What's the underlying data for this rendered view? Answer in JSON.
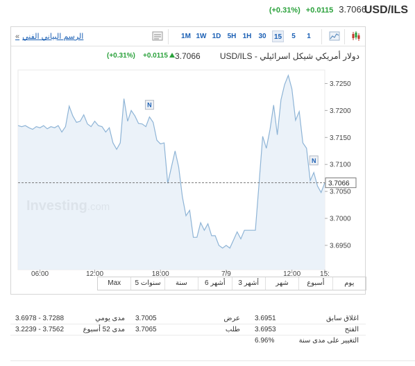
{
  "header": {
    "symbol": "USD/ILS",
    "price": "3.7066",
    "change": "+0.0115",
    "change_pct": "(+0.31%)"
  },
  "toolbar": {
    "tech_chart_link": "الرسم البياني الفني",
    "tech_chart_arrow": "«",
    "timeframes": [
      "1M",
      "1W",
      "1D",
      "5H",
      "1H",
      "30",
      "15",
      "5",
      "1"
    ],
    "active_timeframe": "15",
    "icons": [
      "candlestick-icon",
      "area-chart-icon",
      "table-icon"
    ]
  },
  "title_row": {
    "name": "USD/ILS - دولار أمريكي شيكل اسرائيلي",
    "price": "3.7066",
    "change": "+0.0115",
    "change_pct": "(+0.31%)"
  },
  "chart_data": {
    "type": "area",
    "ylim": [
      3.6905,
      3.7275
    ],
    "y_ticks": [
      "3.7250",
      "3.7200",
      "3.7150",
      "3.7100",
      "3.7050",
      "3.7000",
      "3.6950"
    ],
    "x_tick_labels": [
      "06:00",
      "12:00",
      "18:00",
      "7/9",
      "12:00",
      "15:"
    ],
    "current_value": "3.7066",
    "news_markers": [
      "N",
      "N"
    ],
    "watermark": {
      "brand": "Investing",
      "suffix": ".com"
    },
    "series": [
      {
        "values": [
          3.7172,
          3.717,
          3.7172,
          3.7168,
          3.7165,
          3.717,
          3.7168,
          3.7172,
          3.7166,
          3.717,
          3.7168,
          3.7172,
          3.716,
          3.717,
          3.7208,
          3.719,
          3.7178,
          3.718,
          3.7192,
          3.7175,
          3.717,
          3.718,
          3.7172,
          3.717,
          3.716,
          3.7168,
          3.714,
          3.7128,
          3.714,
          3.7222,
          3.718,
          3.72,
          3.719,
          3.7176,
          3.7175,
          3.717,
          3.7188,
          3.7178,
          3.7145,
          3.7138,
          3.714,
          3.7065,
          3.7095,
          3.7125,
          3.7095,
          3.704,
          3.7005,
          3.7015,
          3.6965,
          3.6965,
          3.6992,
          3.6978,
          3.699,
          3.6968,
          3.6968,
          3.695,
          3.6945,
          3.695,
          3.6945,
          3.696,
          3.6975,
          3.6962,
          3.6978,
          3.6978,
          3.6978,
          3.6978,
          3.7065,
          3.7152,
          3.713,
          3.7165,
          3.721,
          3.7155,
          3.722,
          3.7248,
          3.7265,
          3.724,
          3.7182,
          3.7198,
          3.714,
          3.713,
          3.707,
          3.7085,
          3.706,
          3.7048,
          3.7066
        ]
      }
    ]
  },
  "periods": [
    "يوم",
    "أسبوع",
    "شهر",
    "3 أشهر",
    "6 أشهر",
    "سنة",
    "5 سنوات",
    "Max"
  ],
  "stats": {
    "rows": [
      {
        "label1": "اغلاق سابق",
        "value1": "3.6951",
        "label2": "عرض",
        "value2": "3.7005",
        "label3": "مدى يومي",
        "value3": "3.6978 - 3.7288"
      },
      {
        "label1": "الفتح",
        "value1": "3.6953",
        "label2": "طلب",
        "value2": "3.7065",
        "label3": "مدى 52 أسبوع",
        "value3": "3.2239 - 3.7562"
      },
      {
        "label1": "التغيير على مدى سنة",
        "value1": "6.96%",
        "label2": "",
        "value2": "",
        "label3": "",
        "value3": ""
      }
    ]
  },
  "colors": {
    "positive": "#2aa13b",
    "link": "#1a5fb4",
    "line": "#8eb4d6",
    "area": "#e8f0f8"
  }
}
